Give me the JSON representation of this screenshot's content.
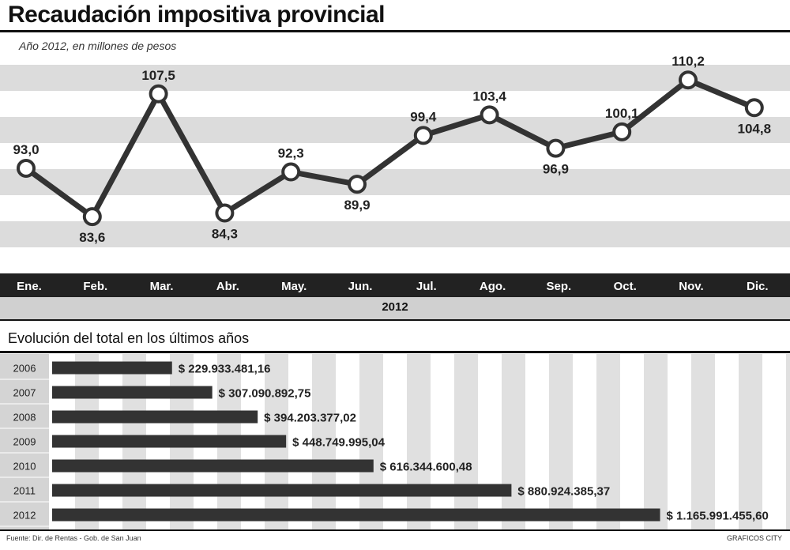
{
  "header": {
    "title": "Recaudación impositiva provincial",
    "subtitle": "Año 2012, en millones de pesos"
  },
  "chart_data": [
    {
      "type": "line",
      "title": "Recaudación impositiva provincial",
      "subtitle": "Año 2012, en millones de pesos",
      "categories": [
        "Ene.",
        "Feb.",
        "Mar.",
        "Abr.",
        "May.",
        "Jun.",
        "Jul.",
        "Ago.",
        "Sep.",
        "Oct.",
        "Nov.",
        "Dic."
      ],
      "values": [
        93.0,
        83.6,
        107.5,
        84.3,
        92.3,
        89.9,
        99.4,
        103.4,
        96.9,
        100.1,
        110.2,
        104.8
      ],
      "value_labels": [
        "93,0",
        "83,6",
        "107,5",
        "84,3",
        "92,3",
        "89,9",
        "99,4",
        "103,4",
        "96,9",
        "100,1",
        "110,2",
        "104,8"
      ],
      "xlabel": "2012",
      "ylim": [
        75,
        115
      ],
      "grid": "horizontal-bands",
      "line_color": "#333333"
    },
    {
      "type": "bar",
      "orientation": "horizontal",
      "title": "Evolución del total en los últimos años",
      "categories": [
        "2006",
        "2007",
        "2008",
        "2009",
        "2010",
        "2011",
        "2012"
      ],
      "values": [
        229933481.16,
        307090892.75,
        394203377.02,
        448749995.04,
        616344600.48,
        880924385.37,
        1165991455.6
      ],
      "value_labels": [
        "$ 229.933.481,16",
        "$ 307.090.892,75",
        "$ 394.203.377,02",
        "$ 448.749.995,04",
        "$ 616.344.600,48",
        "$ 880.924.385,37",
        "$ 1.165.991.455,60"
      ],
      "xlim": [
        0,
        1400000000
      ],
      "bar_color": "#333333"
    }
  ],
  "footer": {
    "source": "Fuente: Dir. de Rentas - Gob. de San Juan",
    "credit": "GRAFICOS CITY"
  }
}
